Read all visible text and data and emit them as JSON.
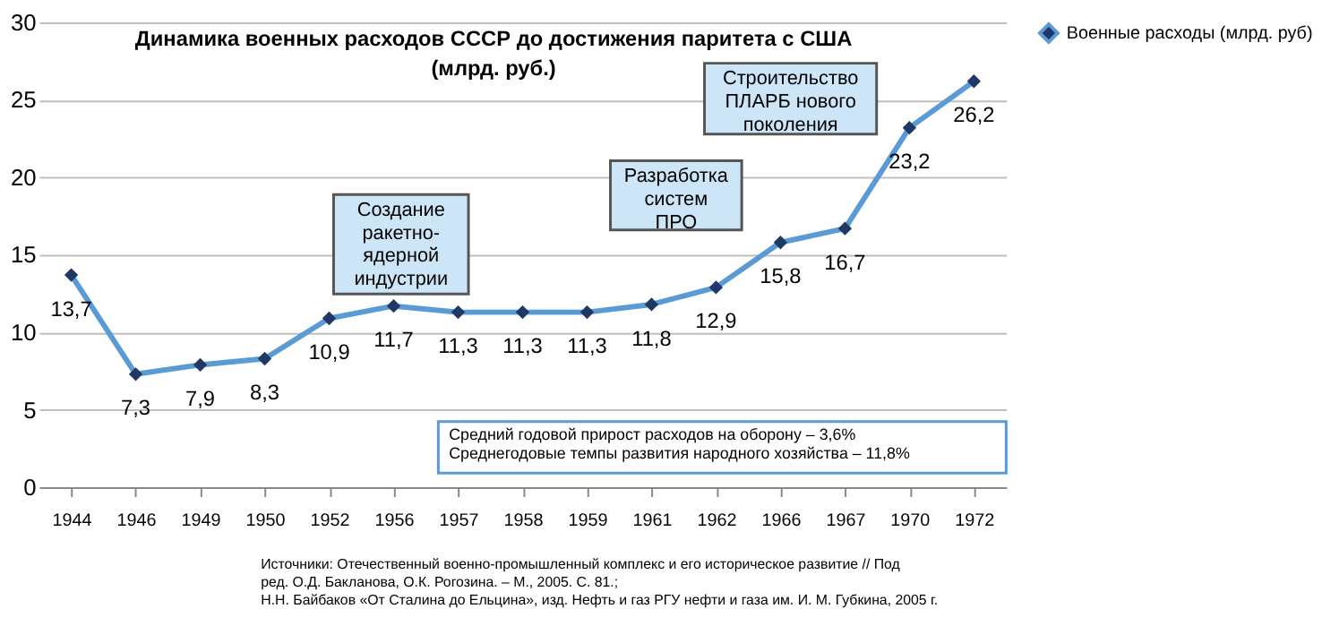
{
  "chart_data": {
    "type": "line",
    "title": "Динамика военных расходов СССР до достижения паритета с США",
    "subtitle": "(млрд. руб.)",
    "categories": [
      "1944",
      "1946",
      "1949",
      "1950",
      "1952",
      "1956",
      "1957",
      "1958",
      "1959",
      "1961",
      "1962",
      "1966",
      "1967",
      "1970",
      "1972"
    ],
    "series": [
      {
        "name": "Военные расходы (млрд. руб)",
        "color": "#5b9bd5",
        "values": [
          13.7,
          7.3,
          7.9,
          8.3,
          10.9,
          11.7,
          11.3,
          11.3,
          11.3,
          11.8,
          12.9,
          15.8,
          16.7,
          23.2,
          26.2
        ],
        "value_labels": [
          "13,7",
          "7,3",
          "7,9",
          "8,3",
          "10,9",
          "11,7",
          "11,3",
          "11,3",
          "11,3",
          "11,8",
          "12,9",
          "15,8",
          "16,7",
          "23,2",
          "26,2"
        ]
      }
    ],
    "ylim": [
      0,
      30
    ],
    "yticks": [
      0,
      5,
      10,
      15,
      20,
      25,
      30
    ],
    "grid": "y",
    "legend": "right",
    "marker": "diamond",
    "line_style": "solid",
    "annotations": [
      "Создание\nракетно-\nядерной\nиндустрии",
      "Разработка\nсистем\nПРО",
      "Строительство\nПЛАРБ нового\nпоколения",
      "Средний годовой прирост расходов на оборону – 3,6%\nСреднегодовые темпы развития народного хозяйства – 11,8%",
      "Источники: Отечественный военно-промышленный комплекс и его историческое развитие // Под\nред. О.Д. Бакланова, О.К. Рогозина. – М., 2005. С. 81.;\nН.Н. Байбаков «От Сталина до Ельцина», изд. Нефть и газ РГУ нефти и газа им. И. М. Губкина, 2005 г."
    ]
  }
}
